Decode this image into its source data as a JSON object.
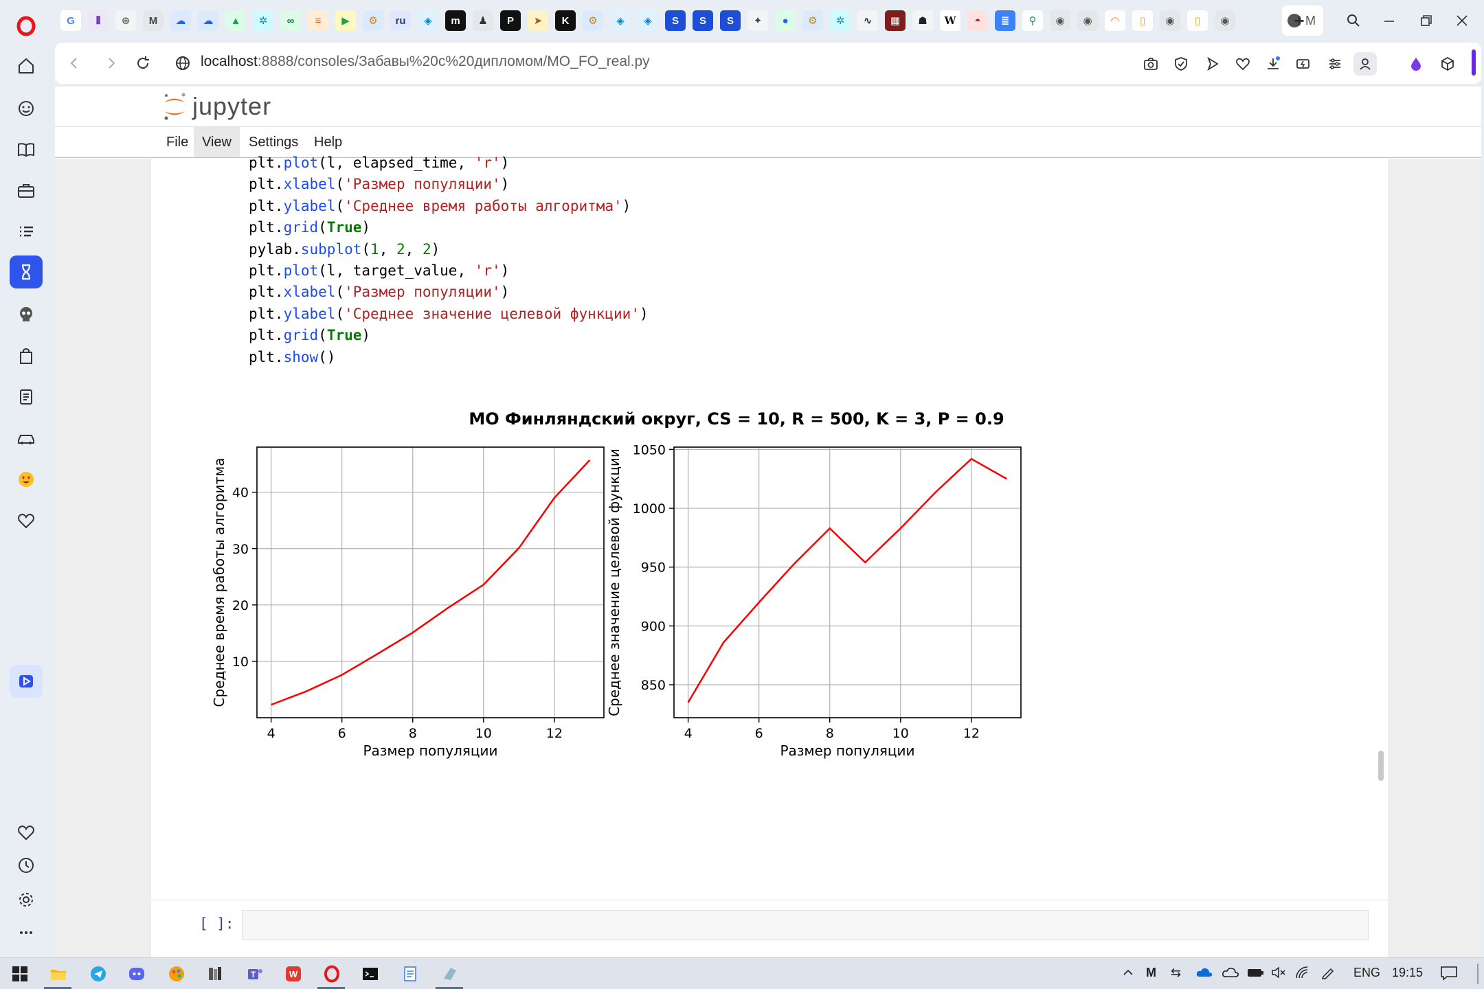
{
  "browser": {
    "active_tab_label": "M",
    "address": {
      "host": "localhost",
      "path": ":8888/consoles/Забавы%20с%20дипломом/MO_FO_real.py"
    }
  },
  "app": {
    "logo_text": "jupyter",
    "menu": [
      "File",
      "View",
      "Settings",
      "Help"
    ],
    "active_menu": "View"
  },
  "code_lines": [
    [
      {
        "t": "plt.",
        "c": "n"
      },
      {
        "t": "plot",
        "c": "a"
      },
      {
        "t": "(l, elapsed_time, ",
        "c": "n"
      },
      {
        "t": "'r'",
        "c": "s"
      },
      {
        "t": ")",
        "c": "n"
      }
    ],
    [
      {
        "t": "plt.",
        "c": "n"
      },
      {
        "t": "xlabel",
        "c": "a"
      },
      {
        "t": "(",
        "c": "n"
      },
      {
        "t": "'Размер популяции'",
        "c": "s"
      },
      {
        "t": ")",
        "c": "n"
      }
    ],
    [
      {
        "t": "plt.",
        "c": "n"
      },
      {
        "t": "ylabel",
        "c": "a"
      },
      {
        "t": "(",
        "c": "n"
      },
      {
        "t": "'Среднее время работы алгоритма'",
        "c": "s"
      },
      {
        "t": ")",
        "c": "n"
      }
    ],
    [
      {
        "t": "plt.",
        "c": "n"
      },
      {
        "t": "grid",
        "c": "a"
      },
      {
        "t": "(",
        "c": "n"
      },
      {
        "t": "True",
        "c": "b"
      },
      {
        "t": ")",
        "c": "n"
      }
    ],
    [
      {
        "t": "pylab.",
        "c": "n"
      },
      {
        "t": "subplot",
        "c": "a"
      },
      {
        "t": "(",
        "c": "n"
      },
      {
        "t": "1",
        "c": "num"
      },
      {
        "t": ", ",
        "c": "n"
      },
      {
        "t": "2",
        "c": "num"
      },
      {
        "t": ", ",
        "c": "n"
      },
      {
        "t": "2",
        "c": "num"
      },
      {
        "t": ")",
        "c": "n"
      }
    ],
    [
      {
        "t": "plt.",
        "c": "n"
      },
      {
        "t": "plot",
        "c": "a"
      },
      {
        "t": "(l, target_value, ",
        "c": "n"
      },
      {
        "t": "'r'",
        "c": "s"
      },
      {
        "t": ")",
        "c": "n"
      }
    ],
    [
      {
        "t": "plt.",
        "c": "n"
      },
      {
        "t": "xlabel",
        "c": "a"
      },
      {
        "t": "(",
        "c": "n"
      },
      {
        "t": "'Размер популяции'",
        "c": "s"
      },
      {
        "t": ")",
        "c": "n"
      }
    ],
    [
      {
        "t": "plt.",
        "c": "n"
      },
      {
        "t": "ylabel",
        "c": "a"
      },
      {
        "t": "(",
        "c": "n"
      },
      {
        "t": "'Среднее значение целевой функции'",
        "c": "s"
      },
      {
        "t": ")",
        "c": "n"
      }
    ],
    [
      {
        "t": "plt.",
        "c": "n"
      },
      {
        "t": "grid",
        "c": "a"
      },
      {
        "t": "(",
        "c": "n"
      },
      {
        "t": "True",
        "c": "b"
      },
      {
        "t": ")",
        "c": "n"
      }
    ],
    [
      {
        "t": "plt.",
        "c": "n"
      },
      {
        "t": "show",
        "c": "a"
      },
      {
        "t": "()",
        "c": "n"
      }
    ]
  ],
  "figure_title": "МО Финляндский округ, CS = 10, R = 500, K = 3, P = 0.9",
  "chart_data": [
    {
      "type": "line",
      "title": "",
      "xlabel": "Размер популяции",
      "ylabel": "Среднее время работы алгоритма",
      "x": [
        4,
        5,
        6,
        7,
        8,
        9,
        10,
        11,
        12,
        13
      ],
      "series": [
        {
          "name": "elapsed_time",
          "color": "#ff0000",
          "values": [
            2.3,
            4.7,
            7.6,
            11.3,
            15.1,
            19.5,
            23.6,
            30.1,
            39.0,
            45.7
          ]
        }
      ],
      "xlim": [
        3.6,
        13.4
      ],
      "ylim": [
        0,
        48
      ],
      "xticks": [
        4,
        6,
        8,
        10,
        12
      ],
      "yticks": [
        10,
        20,
        30,
        40
      ],
      "grid": true
    },
    {
      "type": "line",
      "title": "",
      "xlabel": "Размер популяции",
      "ylabel": "Среднее значение целевой функции",
      "x": [
        4,
        5,
        6,
        7,
        8,
        9,
        10,
        11,
        12,
        13
      ],
      "series": [
        {
          "name": "target_value",
          "color": "#ff0000",
          "values": [
            835,
            886,
            920,
            953,
            983,
            954,
            983,
            1014,
            1042,
            1025
          ]
        }
      ],
      "xlim": [
        3.6,
        13.4
      ],
      "ylim": [
        822,
        1052
      ],
      "xticks": [
        4,
        6,
        8,
        10,
        12
      ],
      "yticks": [
        850,
        900,
        950,
        1000,
        1050
      ],
      "grid": true
    }
  ],
  "input_prompt": "[ ]:",
  "taskbar": {
    "language": "ENG",
    "time": "19:15"
  },
  "colors": {
    "accent": "#2f54eb",
    "plot_line": "#ff0000",
    "jupyter_orange": "#f37726"
  }
}
